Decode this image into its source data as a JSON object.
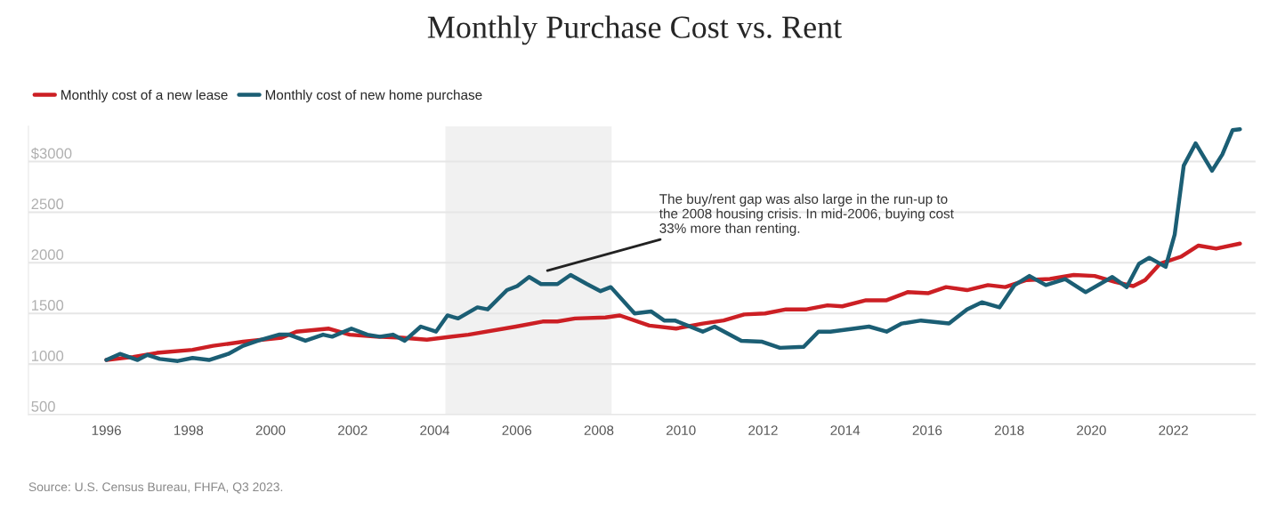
{
  "chart_data": {
    "type": "line",
    "title": "Monthly Purchase Cost vs. Rent",
    "series": [
      {
        "name": "Monthly cost of a new lease",
        "color": "#cc1f24",
        "x": [
          1996.0,
          1996.65,
          1997.23,
          1998.1,
          1998.6,
          1999.33,
          2000.27,
          2000.63,
          2001.42,
          2001.93,
          2002.58,
          2003.2,
          2003.81,
          2004.82,
          2005.98,
          2006.63,
          2006.99,
          2007.42,
          2008.16,
          2008.51,
          2009.23,
          2009.88,
          2010.53,
          2011.04,
          2011.54,
          2012.05,
          2012.56,
          2013.06,
          2013.57,
          2013.93,
          2014.51,
          2015.01,
          2015.52,
          2016.03,
          2016.46,
          2016.97,
          2017.48,
          2017.9,
          2018.42,
          2018.99,
          2019.57,
          2020.08,
          2020.58,
          2021.02,
          2021.31,
          2021.67,
          2022.18,
          2022.61,
          2023.04,
          2023.62
        ],
        "values": [
          1040,
          1070,
          1110,
          1140,
          1180,
          1220,
          1260,
          1320,
          1350,
          1290,
          1270,
          1260,
          1240,
          1290,
          1370,
          1420,
          1420,
          1450,
          1460,
          1480,
          1380,
          1350,
          1400,
          1430,
          1490,
          1500,
          1540,
          1540,
          1580,
          1570,
          1630,
          1630,
          1710,
          1700,
          1760,
          1730,
          1780,
          1760,
          1830,
          1840,
          1880,
          1870,
          1810,
          1770,
          1830,
          1990,
          2060,
          2170,
          2140,
          2190
        ]
      },
      {
        "name": "Monthly cost of new home purchase",
        "color": "#1b5e74",
        "x": [
          1996.0,
          1996.33,
          1996.76,
          1997.0,
          1997.3,
          1997.74,
          1998.1,
          1998.5,
          1998.97,
          1999.33,
          1999.69,
          2000.2,
          2000.45,
          2000.85,
          2001.28,
          2001.5,
          2001.97,
          2002.36,
          2002.66,
          2002.98,
          2003.27,
          2003.66,
          2004.03,
          2004.31,
          2004.57,
          2005.04,
          2005.29,
          2005.76,
          2006.01,
          2006.3,
          2006.59,
          2006.99,
          2007.31,
          2007.71,
          2008.04,
          2008.29,
          2008.87,
          2009.27,
          2009.59,
          2009.85,
          2010.53,
          2010.82,
          2011.47,
          2011.98,
          2012.41,
          2012.99,
          2013.35,
          2013.64,
          2014.22,
          2014.58,
          2015.01,
          2015.38,
          2015.85,
          2016.53,
          2016.97,
          2017.33,
          2017.76,
          2018.13,
          2018.49,
          2018.89,
          2019.36,
          2019.86,
          2020.51,
          2020.86,
          2021.16,
          2021.41,
          2021.81,
          2022.03,
          2022.25,
          2022.54,
          2022.94,
          2023.19,
          2023.44,
          2023.62
        ],
        "values": [
          1040,
          1100,
          1040,
          1090,
          1050,
          1030,
          1060,
          1040,
          1100,
          1180,
          1230,
          1290,
          1290,
          1230,
          1290,
          1270,
          1350,
          1290,
          1270,
          1290,
          1230,
          1370,
          1320,
          1480,
          1450,
          1560,
          1540,
          1730,
          1770,
          1860,
          1790,
          1790,
          1880,
          1790,
          1720,
          1760,
          1500,
          1520,
          1430,
          1430,
          1320,
          1370,
          1230,
          1220,
          1160,
          1170,
          1320,
          1320,
          1350,
          1370,
          1320,
          1400,
          1430,
          1400,
          1540,
          1610,
          1560,
          1780,
          1870,
          1780,
          1840,
          1710,
          1860,
          1760,
          1990,
          2050,
          1960,
          2280,
          2960,
          3180,
          2910,
          3070,
          3310,
          3320
        ]
      }
    ],
    "xlim": [
      1994.1,
      2024.0
    ],
    "xticks": [
      1996,
      1998,
      2000,
      2002,
      2004,
      2006,
      2008,
      2010,
      2012,
      2014,
      2016,
      2018,
      2020,
      2022
    ],
    "ylim": [
      500,
      3350
    ],
    "yticks": [
      500,
      1000,
      1500,
      2000,
      2500,
      {
        "value": 3000,
        "label": "$3000"
      }
    ],
    "grid": "y",
    "legend": "top left",
    "line_style": "solid",
    "marker": "none",
    "bands": [
      {
        "axis": "x",
        "from": 2004.26,
        "to": 2008.31,
        "color": "#f1f1f1"
      }
    ],
    "annotations": [
      "The buy/rent gap was also large in the run-up to\nthe 2008 housing crisis. In mid-2006, buying cost\n33% more than renting.",
      "Source: U.S. Census Bureau, FHFA, Q3 2023."
    ]
  }
}
